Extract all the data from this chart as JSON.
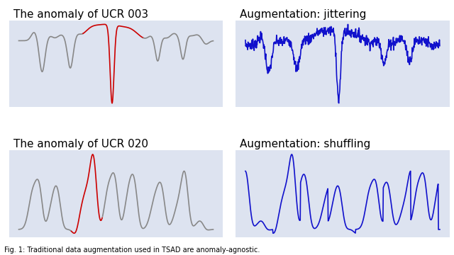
{
  "title_tl": "The anomaly of UCR 003",
  "title_tr": "Augmentation: jittering",
  "title_bl": "The anomaly of UCR 020",
  "title_br": "Augmentation: shuffling",
  "bg_color": "#dde3f0",
  "fig_bg": "#ffffff",
  "gray_color": "#888888",
  "red_color": "#cc0000",
  "blue_color": "#1111cc",
  "title_fontsize": 11,
  "linewidth": 1.2,
  "caption": "Fig. 1: Traditional data augmentation used in TSAD are anomaly-agnostic."
}
